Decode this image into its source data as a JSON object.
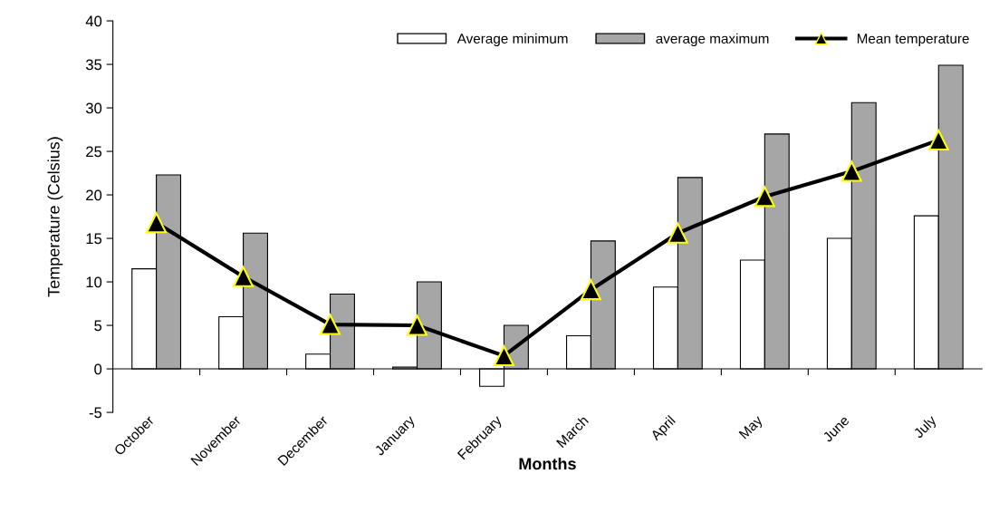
{
  "chart_data": {
    "type": "bar",
    "xlabel": "Months",
    "ylabel": "Temperature (Celsius)",
    "categories": [
      "October",
      "November",
      "December",
      "January",
      "February",
      "March",
      "April",
      "May",
      "June",
      "July"
    ],
    "series": [
      {
        "name": "Average minimum",
        "color": "#ffffff",
        "values": [
          11.5,
          6.0,
          1.7,
          0.2,
          -2.0,
          3.8,
          9.4,
          12.5,
          15.0,
          17.6
        ]
      },
      {
        "name": "average maximum",
        "color": "#a6a6a6",
        "values": [
          22.3,
          15.6,
          8.6,
          10.0,
          5.0,
          14.7,
          22.0,
          27.0,
          30.6,
          34.9
        ]
      },
      {
        "name": "Mean temperature",
        "type": "line",
        "color": "#000000",
        "marker": "triangle",
        "line_style": "solid",
        "values": [
          16.8,
          10.6,
          5.1,
          5.0,
          1.5,
          9.1,
          15.6,
          19.8,
          22.7,
          26.3
        ]
      }
    ],
    "ylim": [
      -5,
      40
    ],
    "yticks": [
      -5,
      0,
      5,
      10,
      15,
      20,
      25,
      30,
      35,
      40
    ],
    "legend": "top right"
  }
}
